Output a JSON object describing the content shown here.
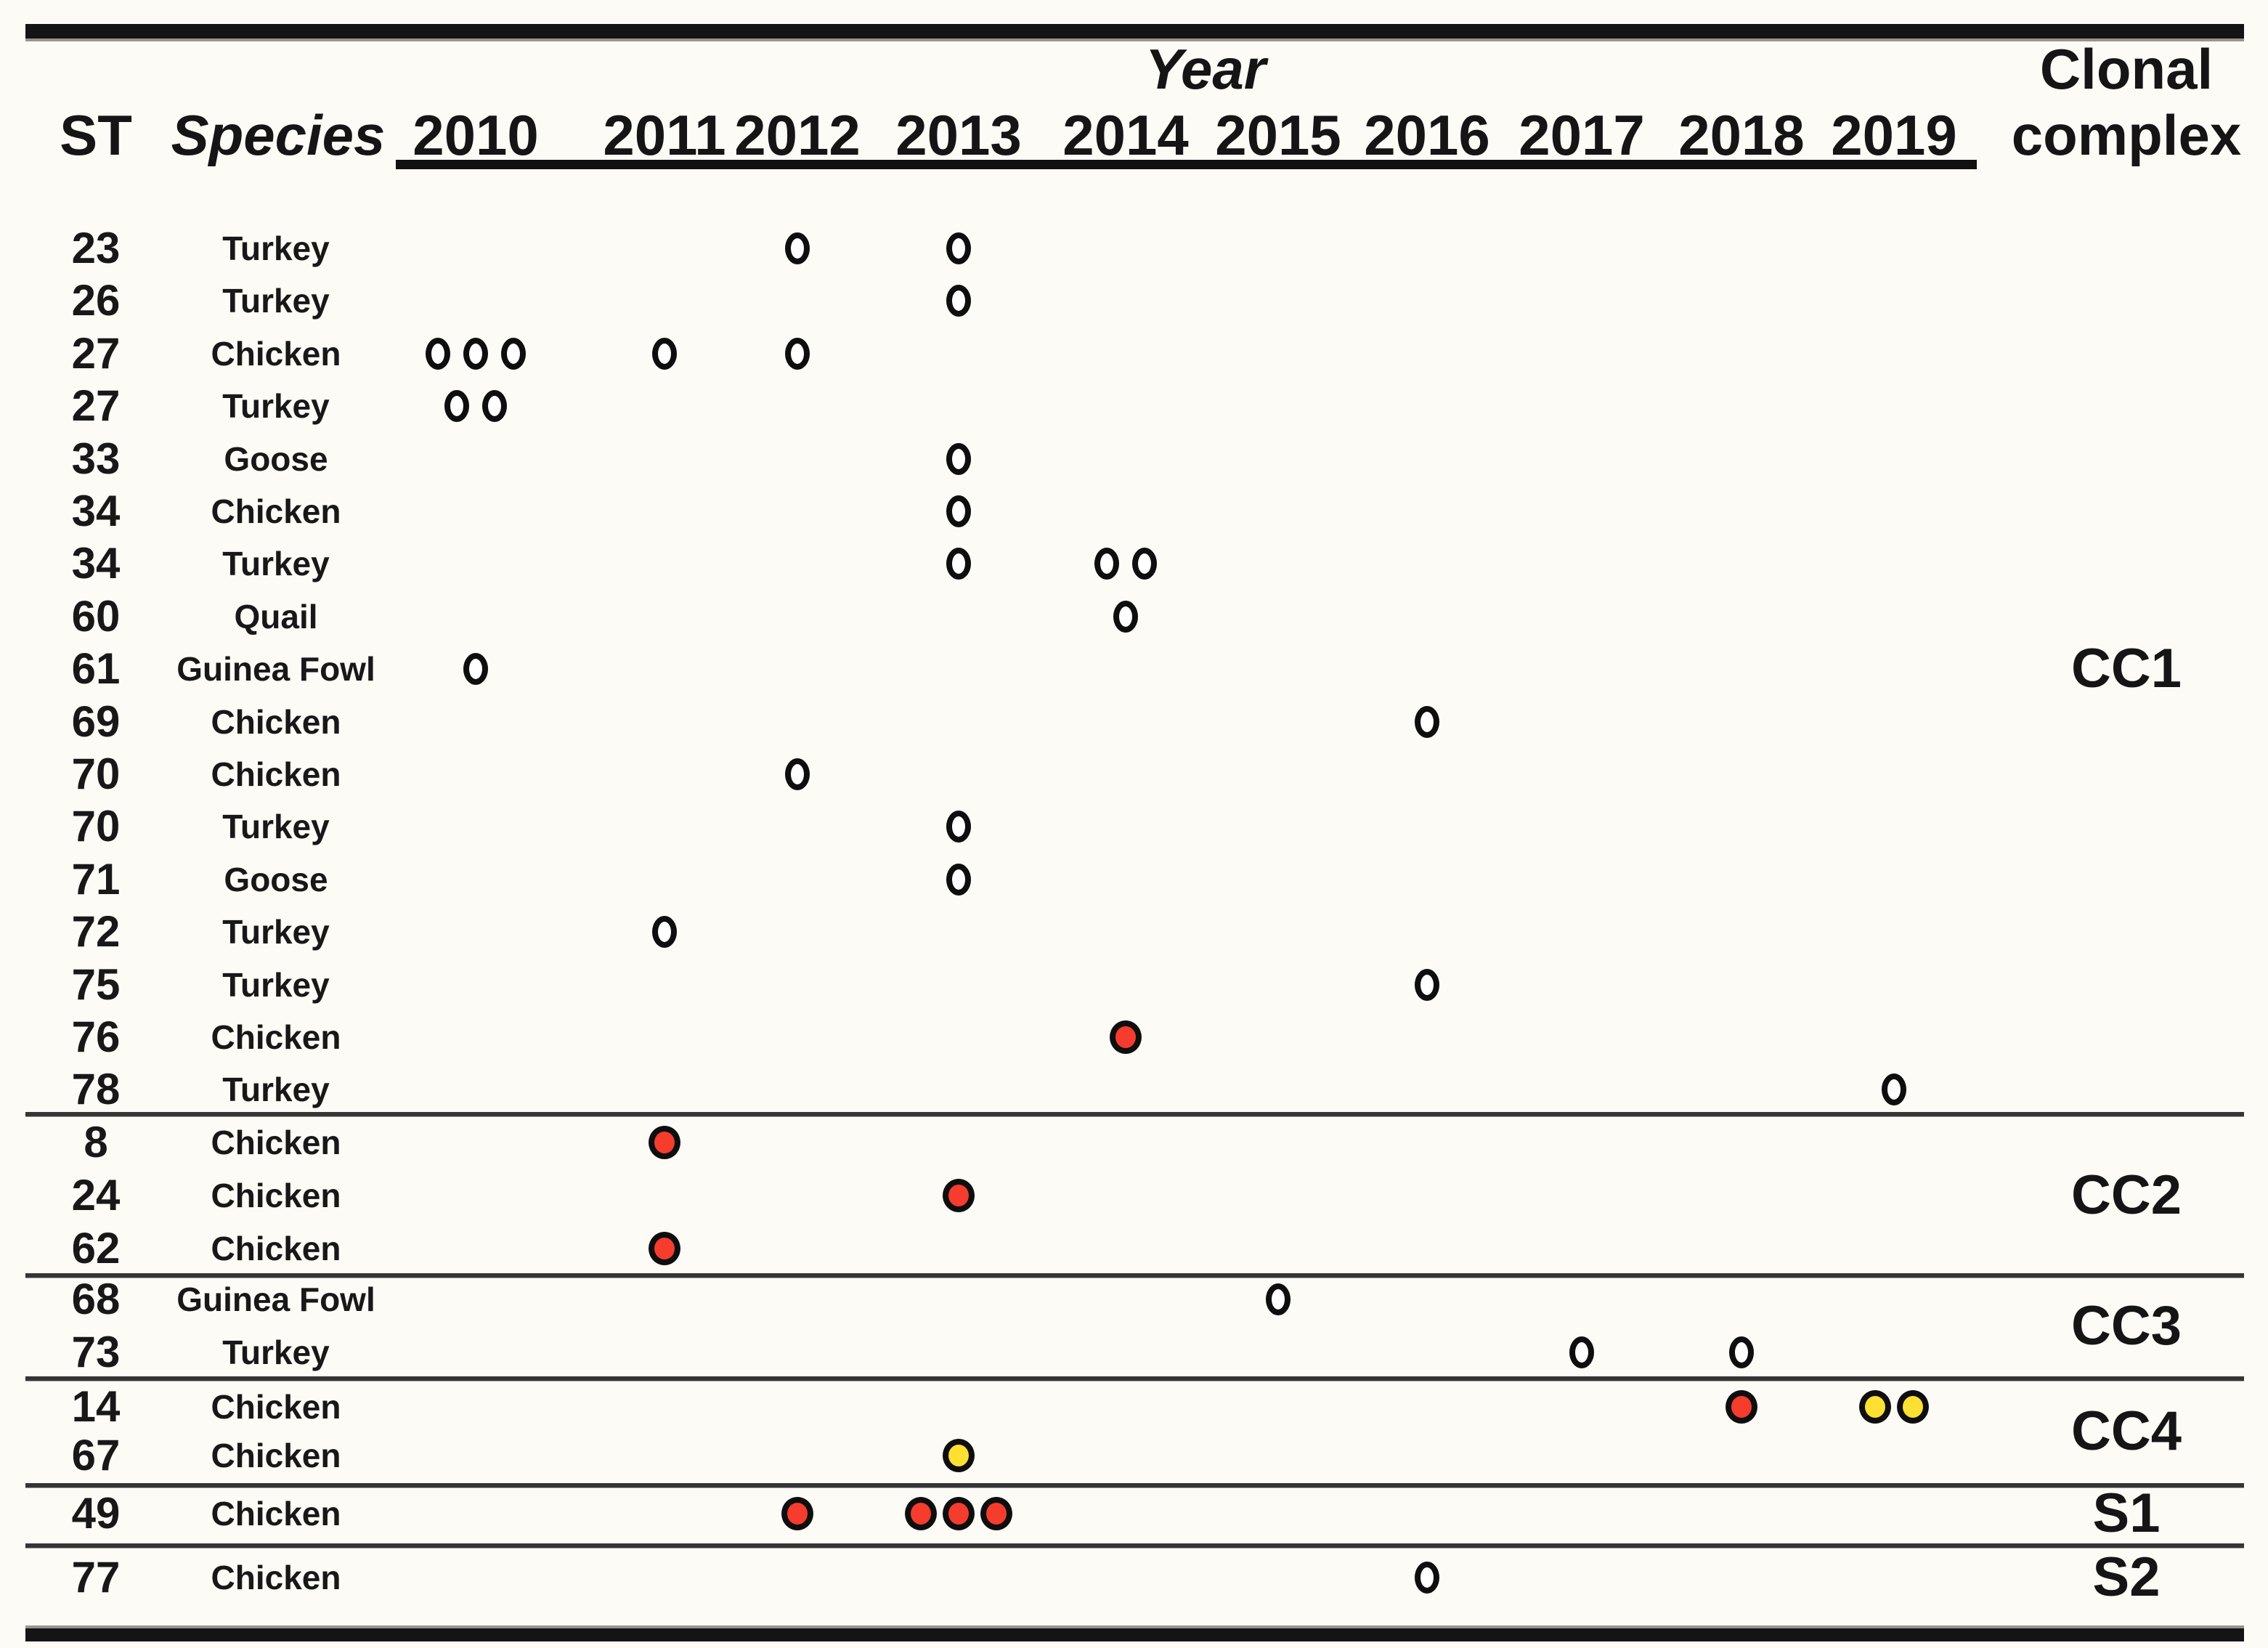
{
  "chart_data": {
    "type": "scatter",
    "subtype": "categorical-dot-timeline",
    "x_label": "Year",
    "x_categories": [
      "2010",
      "2011",
      "2012",
      "2013",
      "2014",
      "2015",
      "2016",
      "2017",
      "2018",
      "2019"
    ],
    "st_header": "ST",
    "species_header": "Species",
    "group_header_line1": "Clonal",
    "group_header_line2": "complex",
    "marker_colors": {
      "white": "#FFFFFF",
      "red": "#F63C2D",
      "yellow": "#FFE032"
    },
    "legend_position": "none",
    "grid": "off",
    "groups": [
      {
        "label": "CC1",
        "rows": [
          {
            "st": "23",
            "species": "Turkey",
            "points": [
              {
                "year": "2012",
                "count": 1,
                "color": "white"
              },
              {
                "year": "2013",
                "count": 1,
                "color": "white"
              }
            ]
          },
          {
            "st": "26",
            "species": "Turkey",
            "points": [
              {
                "year": "2013",
                "count": 1,
                "color": "white"
              }
            ]
          },
          {
            "st": "27",
            "species": "Chicken",
            "points": [
              {
                "year": "2010",
                "count": 3,
                "color": "white"
              },
              {
                "year": "2011",
                "count": 1,
                "color": "white"
              },
              {
                "year": "2012",
                "count": 1,
                "color": "white"
              }
            ]
          },
          {
            "st": "27",
            "species": "Turkey",
            "points": [
              {
                "year": "2010",
                "count": 2,
                "color": "white"
              }
            ]
          },
          {
            "st": "33",
            "species": "Goose",
            "points": [
              {
                "year": "2013",
                "count": 1,
                "color": "white"
              }
            ]
          },
          {
            "st": "34",
            "species": "Chicken",
            "points": [
              {
                "year": "2013",
                "count": 1,
                "color": "white"
              }
            ]
          },
          {
            "st": "34",
            "species": "Turkey",
            "points": [
              {
                "year": "2013",
                "count": 1,
                "color": "white"
              },
              {
                "year": "2014",
                "count": 2,
                "color": "white"
              }
            ]
          },
          {
            "st": "60",
            "species": "Quail",
            "points": [
              {
                "year": "2014",
                "count": 1,
                "color": "white"
              }
            ]
          },
          {
            "st": "61",
            "species": "Guinea Fowl",
            "points": [
              {
                "year": "2010",
                "count": 1,
                "color": "white"
              }
            ]
          },
          {
            "st": "69",
            "species": "Chicken",
            "points": [
              {
                "year": "2016",
                "count": 1,
                "color": "white"
              }
            ]
          },
          {
            "st": "70",
            "species": "Chicken",
            "points": [
              {
                "year": "2012",
                "count": 1,
                "color": "white"
              }
            ]
          },
          {
            "st": "70",
            "species": "Turkey",
            "points": [
              {
                "year": "2013",
                "count": 1,
                "color": "white"
              }
            ]
          },
          {
            "st": "71",
            "species": "Goose",
            "points": [
              {
                "year": "2013",
                "count": 1,
                "color": "white"
              }
            ]
          },
          {
            "st": "72",
            "species": "Turkey",
            "points": [
              {
                "year": "2011",
                "count": 1,
                "color": "white"
              }
            ]
          },
          {
            "st": "75",
            "species": "Turkey",
            "points": [
              {
                "year": "2016",
                "count": 1,
                "color": "white"
              }
            ]
          },
          {
            "st": "76",
            "species": "Chicken",
            "points": [
              {
                "year": "2014",
                "count": 1,
                "color": "red"
              }
            ]
          },
          {
            "st": "78",
            "species": "Turkey",
            "points": [
              {
                "year": "2019",
                "count": 1,
                "color": "white"
              }
            ]
          }
        ]
      },
      {
        "label": "CC2",
        "rows": [
          {
            "st": "8",
            "species": "Chicken",
            "points": [
              {
                "year": "2011",
                "count": 1,
                "color": "red"
              }
            ]
          },
          {
            "st": "24",
            "species": "Chicken",
            "points": [
              {
                "year": "2013",
                "count": 1,
                "color": "red"
              }
            ]
          },
          {
            "st": "62",
            "species": "Chicken",
            "points": [
              {
                "year": "2011",
                "count": 1,
                "color": "red"
              }
            ]
          }
        ]
      },
      {
        "label": "CC3",
        "rows": [
          {
            "st": "68",
            "species": "Guinea Fowl",
            "points": [
              {
                "year": "2015",
                "count": 1,
                "color": "white"
              }
            ]
          },
          {
            "st": "73",
            "species": "Turkey",
            "points": [
              {
                "year": "2017",
                "count": 1,
                "color": "white"
              },
              {
                "year": "2018",
                "count": 1,
                "color": "white"
              }
            ]
          }
        ]
      },
      {
        "label": "CC4",
        "rows": [
          {
            "st": "14",
            "species": "Chicken",
            "points": [
              {
                "year": "2018",
                "count": 1,
                "color": "red"
              },
              {
                "year": "2019",
                "count": 2,
                "color": "yellow"
              }
            ]
          },
          {
            "st": "67",
            "species": "Chicken",
            "points": [
              {
                "year": "2013",
                "count": 1,
                "color": "yellow"
              }
            ]
          }
        ]
      },
      {
        "label": "S1",
        "rows": [
          {
            "st": "49",
            "species": "Chicken",
            "points": [
              {
                "year": "2012",
                "count": 1,
                "color": "red"
              },
              {
                "year": "2013",
                "count": 3,
                "color": "red"
              }
            ]
          }
        ]
      },
      {
        "label": "S2",
        "rows": [
          {
            "st": "77",
            "species": "Chicken",
            "points": [
              {
                "year": "2016",
                "count": 1,
                "color": "white"
              }
            ]
          }
        ]
      }
    ]
  }
}
